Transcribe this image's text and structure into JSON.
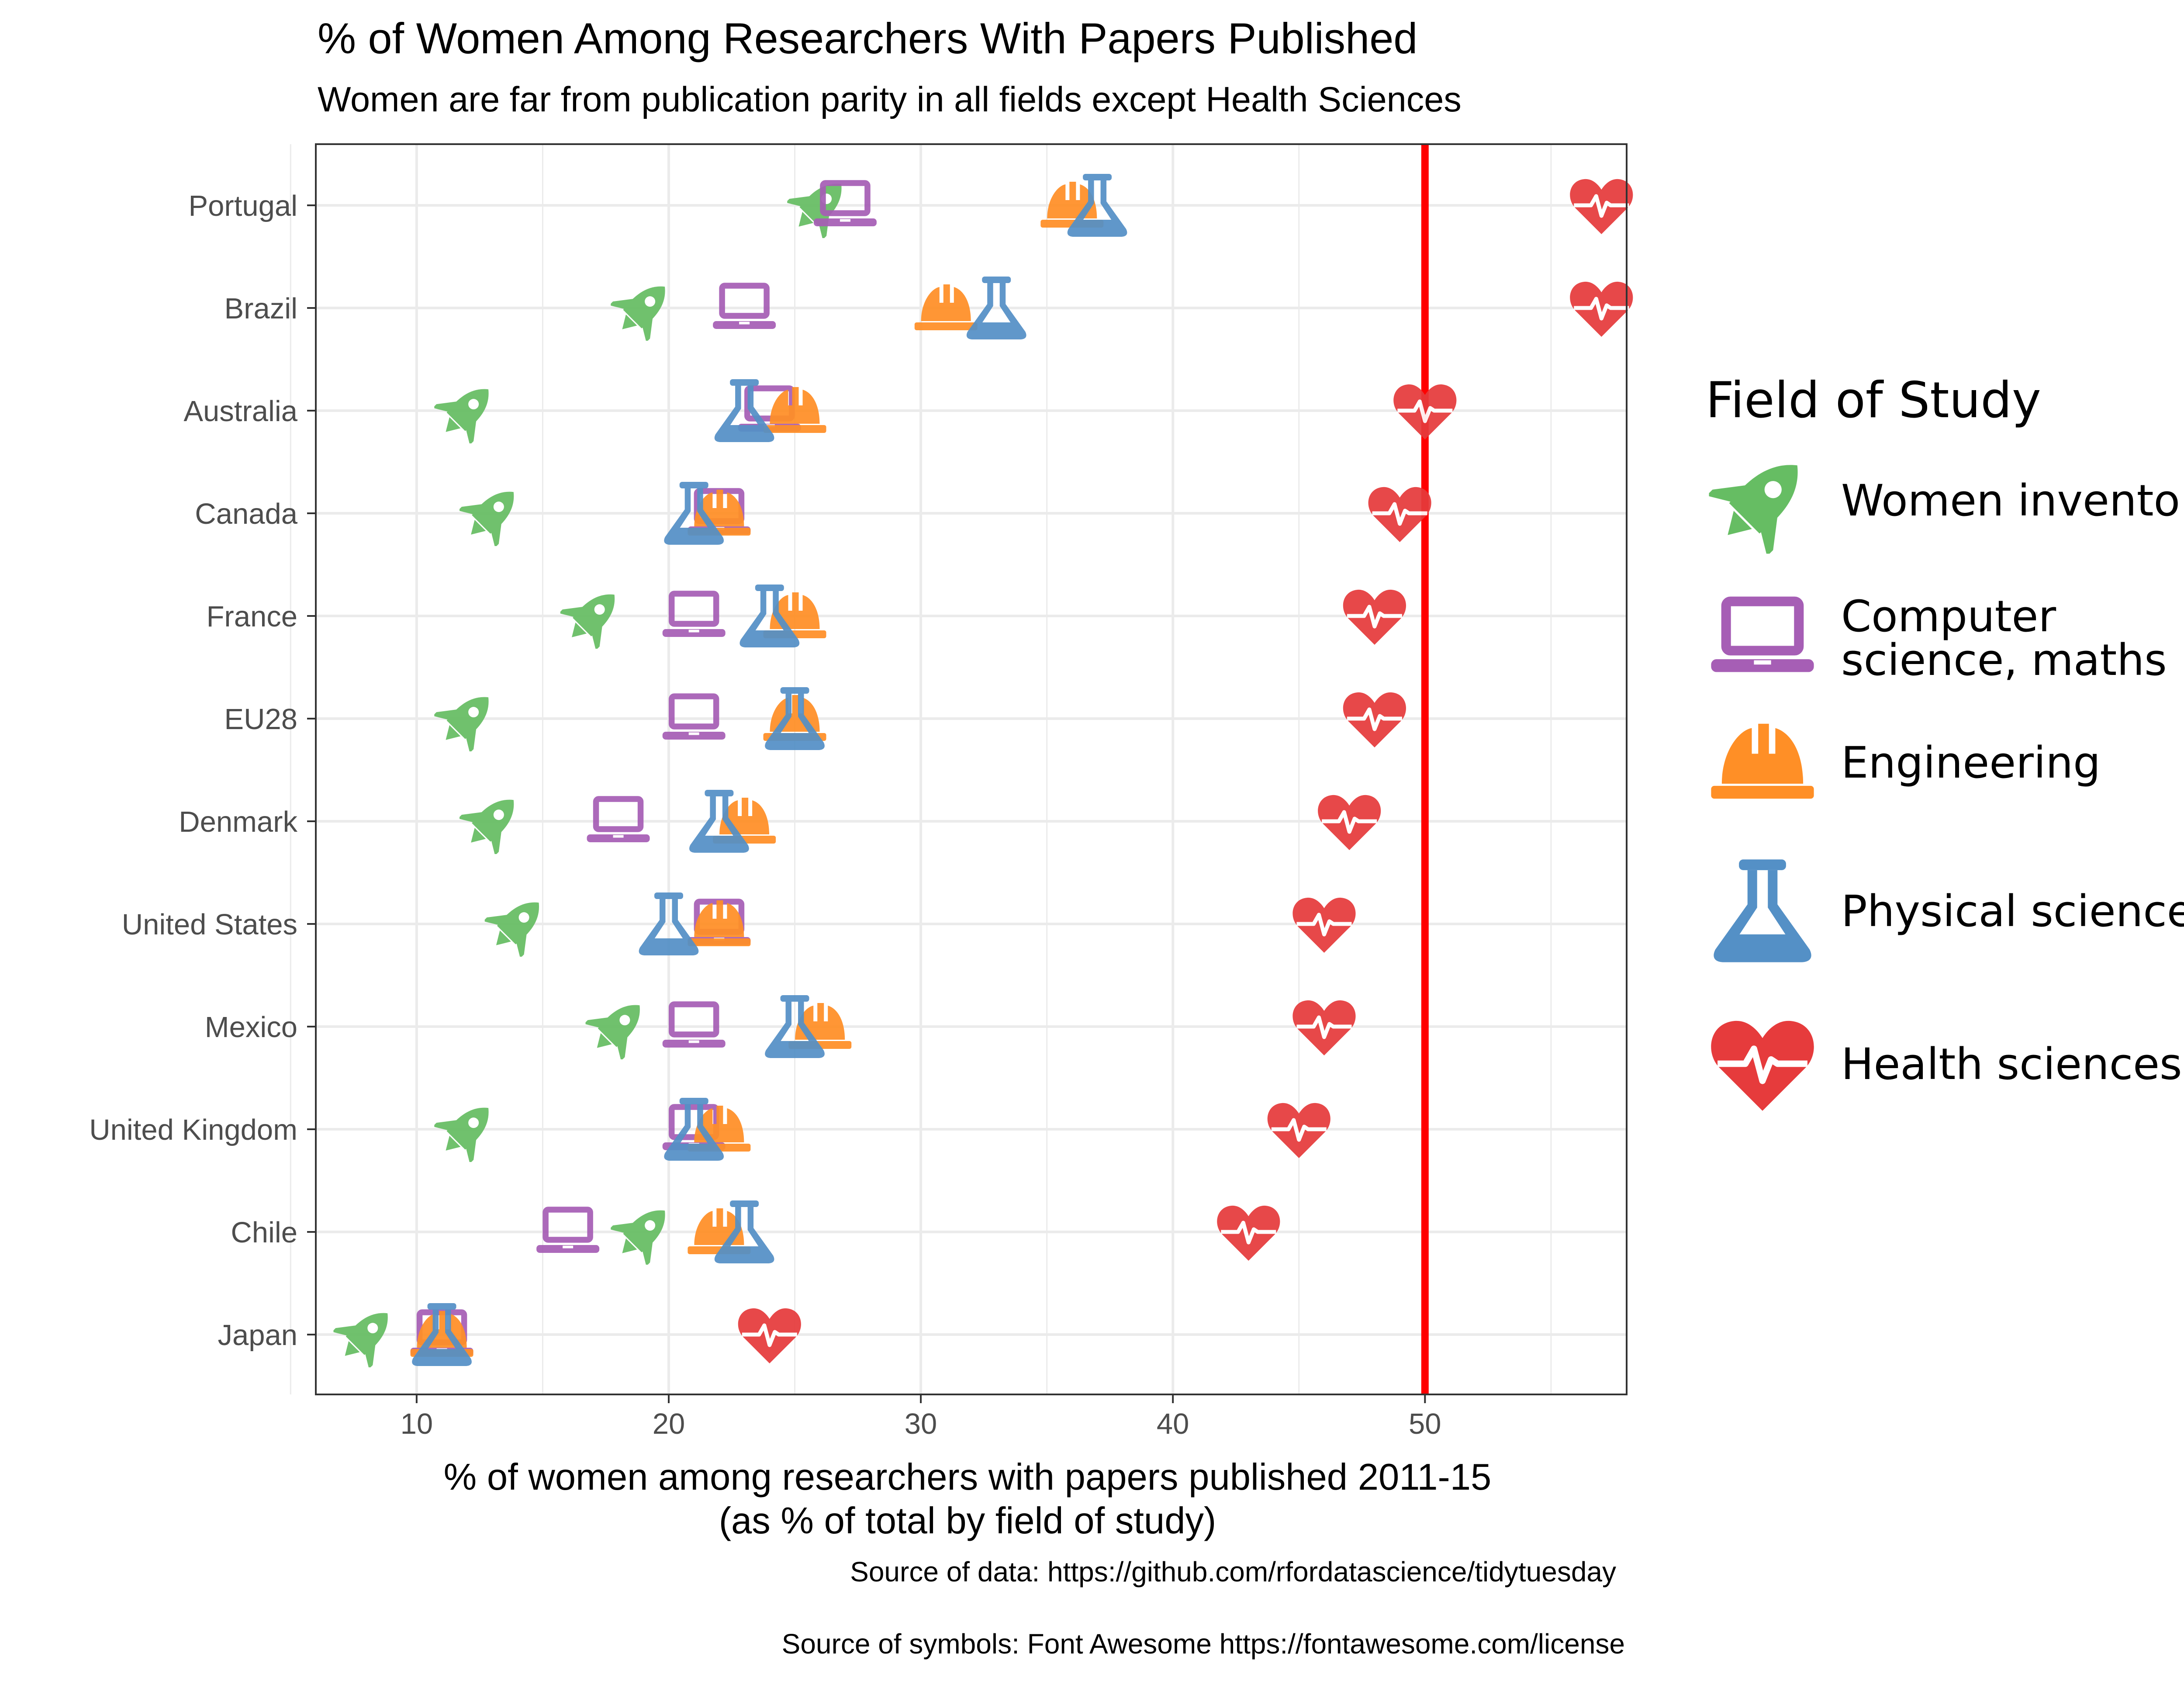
{
  "title": "% of Women Among Researchers With Papers Published",
  "subtitle": "Women are far from publication parity in all fields except Health Sciences",
  "xlabel_lines": [
    "% of women among researchers with papers published 2011-15",
    "(as % of total by field of study)"
  ],
  "captions": [
    "Source of data: https://github.com/rfordatascience/tidytuesday",
    "Source of symbols: Font Awesome https://fontawesome.com/license"
  ],
  "legend": {
    "title": "Field of Study",
    "items": [
      {
        "key": "inventors",
        "lines": [
          "Women inventors"
        ],
        "icon": "rocket-icon",
        "color": "#66BD63"
      },
      {
        "key": "cs",
        "lines": [
          "Computer",
          "science, maths"
        ],
        "icon": "laptop-icon",
        "color": "#A65EB5"
      },
      {
        "key": "eng",
        "lines": [
          "Engineering"
        ],
        "icon": "hard-hat-icon",
        "color": "#FF8F26"
      },
      {
        "key": "phys",
        "lines": [
          "Physical sciences"
        ],
        "icon": "flask-icon",
        "color": "#5490C6"
      },
      {
        "key": "health",
        "lines": [
          "Health sciences"
        ],
        "icon": "heartbeat-icon",
        "color": "#E63B3C"
      }
    ]
  },
  "chart_data": {
    "type": "scatter",
    "xlim": [
      6,
      58
    ],
    "x_ticks": [
      10,
      20,
      30,
      40,
      50
    ],
    "reference_line": {
      "x": 50,
      "color": "#FF0000"
    },
    "grid": true,
    "legend_position": "right",
    "categories": [
      "Portugal",
      "Brazil",
      "Australia",
      "Canada",
      "France",
      "EU28",
      "Denmark",
      "United States",
      "Mexico",
      "United Kingdom",
      "Chile",
      "Japan"
    ],
    "series": [
      {
        "name": "Women inventors",
        "key": "inventors",
        "values": [
          26,
          19,
          12,
          13,
          17,
          12,
          13,
          14,
          18,
          12,
          19,
          8
        ]
      },
      {
        "name": "Computer science, maths",
        "key": "cs",
        "values": [
          27,
          23,
          24,
          22,
          21,
          21,
          18,
          22,
          21,
          21,
          16,
          11
        ]
      },
      {
        "name": "Engineering",
        "key": "eng",
        "values": [
          36,
          31,
          25,
          22,
          25,
          25,
          23,
          22,
          26,
          22,
          22,
          11
        ]
      },
      {
        "name": "Physical sciences",
        "key": "phys",
        "values": [
          37,
          33,
          23,
          21,
          24,
          25,
          22,
          20,
          25,
          21,
          23,
          11
        ]
      },
      {
        "name": "Health sciences",
        "key": "health",
        "values": [
          57,
          57,
          50,
          49,
          48,
          48,
          47,
          46,
          46,
          45,
          43,
          24
        ]
      }
    ]
  }
}
